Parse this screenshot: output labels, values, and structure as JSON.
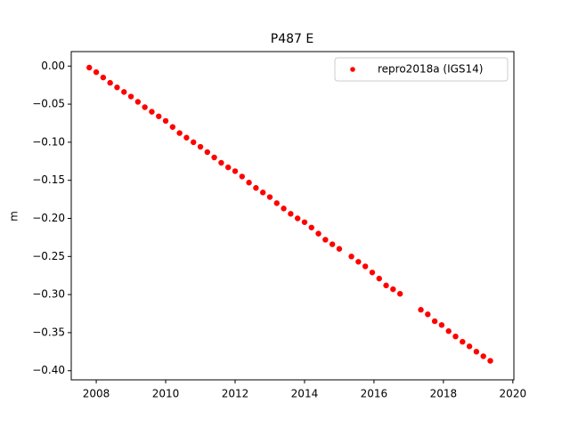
{
  "chart_data": {
    "type": "scatter",
    "title": "P487 E",
    "y_label": "m",
    "legend_position": "upper right",
    "grid": false,
    "xlim": [
      2007.28,
      2020.03
    ],
    "xticks": [
      2008,
      2010,
      2012,
      2014,
      2016,
      2018,
      2020
    ],
    "ylim": [
      -0.412,
      0.019
    ],
    "yticks": [
      {
        "value": 0,
        "label": "0.00"
      },
      {
        "value": -0.05,
        "label": "−0.05"
      },
      {
        "value": -0.1,
        "label": "−0.10"
      },
      {
        "value": -0.15,
        "label": "−0.15"
      },
      {
        "value": -0.2,
        "label": "−0.20"
      },
      {
        "value": -0.25,
        "label": "−0.25"
      },
      {
        "value": -0.3,
        "label": "−0.30"
      },
      {
        "value": -0.35,
        "label": "−0.35"
      },
      {
        "value": -0.4,
        "label": "−0.40"
      }
    ],
    "series": [
      {
        "name": "repro2018a (IGS14)",
        "color": "#ff0000",
        "x": [
          2007.8,
          2008.0,
          2008.2,
          2008.4,
          2008.6,
          2008.8,
          2009.0,
          2009.2,
          2009.4,
          2009.6,
          2009.8,
          2010.0,
          2010.2,
          2010.4,
          2010.6,
          2010.8,
          2011.0,
          2011.2,
          2011.4,
          2011.6,
          2011.8,
          2012.0,
          2012.2,
          2012.4,
          2012.6,
          2012.8,
          2013.0,
          2013.2,
          2013.4,
          2013.6,
          2013.8,
          2014.0,
          2014.2,
          2014.4,
          2014.6,
          2014.8,
          2015.0,
          2015.35,
          2015.55,
          2015.75,
          2015.95,
          2016.15,
          2016.35,
          2016.55,
          2016.75,
          2017.35,
          2017.55,
          2017.75,
          2017.95,
          2018.15,
          2018.35,
          2018.55,
          2018.75,
          2018.95,
          2019.15,
          2019.35
        ],
        "values": [
          -0.002,
          -0.008,
          -0.015,
          -0.022,
          -0.028,
          -0.034,
          -0.04,
          -0.047,
          -0.054,
          -0.06,
          -0.066,
          -0.072,
          -0.08,
          -0.088,
          -0.094,
          -0.1,
          -0.106,
          -0.113,
          -0.12,
          -0.127,
          -0.133,
          -0.138,
          -0.145,
          -0.153,
          -0.16,
          -0.166,
          -0.172,
          -0.18,
          -0.187,
          -0.194,
          -0.2,
          -0.205,
          -0.212,
          -0.22,
          -0.228,
          -0.234,
          -0.24,
          -0.25,
          -0.257,
          -0.263,
          -0.271,
          -0.279,
          -0.288,
          -0.293,
          -0.299,
          -0.32,
          -0.326,
          -0.335,
          -0.34,
          -0.348,
          -0.355,
          -0.362,
          -0.368,
          -0.375,
          -0.381,
          -0.387
        ]
      }
    ]
  }
}
